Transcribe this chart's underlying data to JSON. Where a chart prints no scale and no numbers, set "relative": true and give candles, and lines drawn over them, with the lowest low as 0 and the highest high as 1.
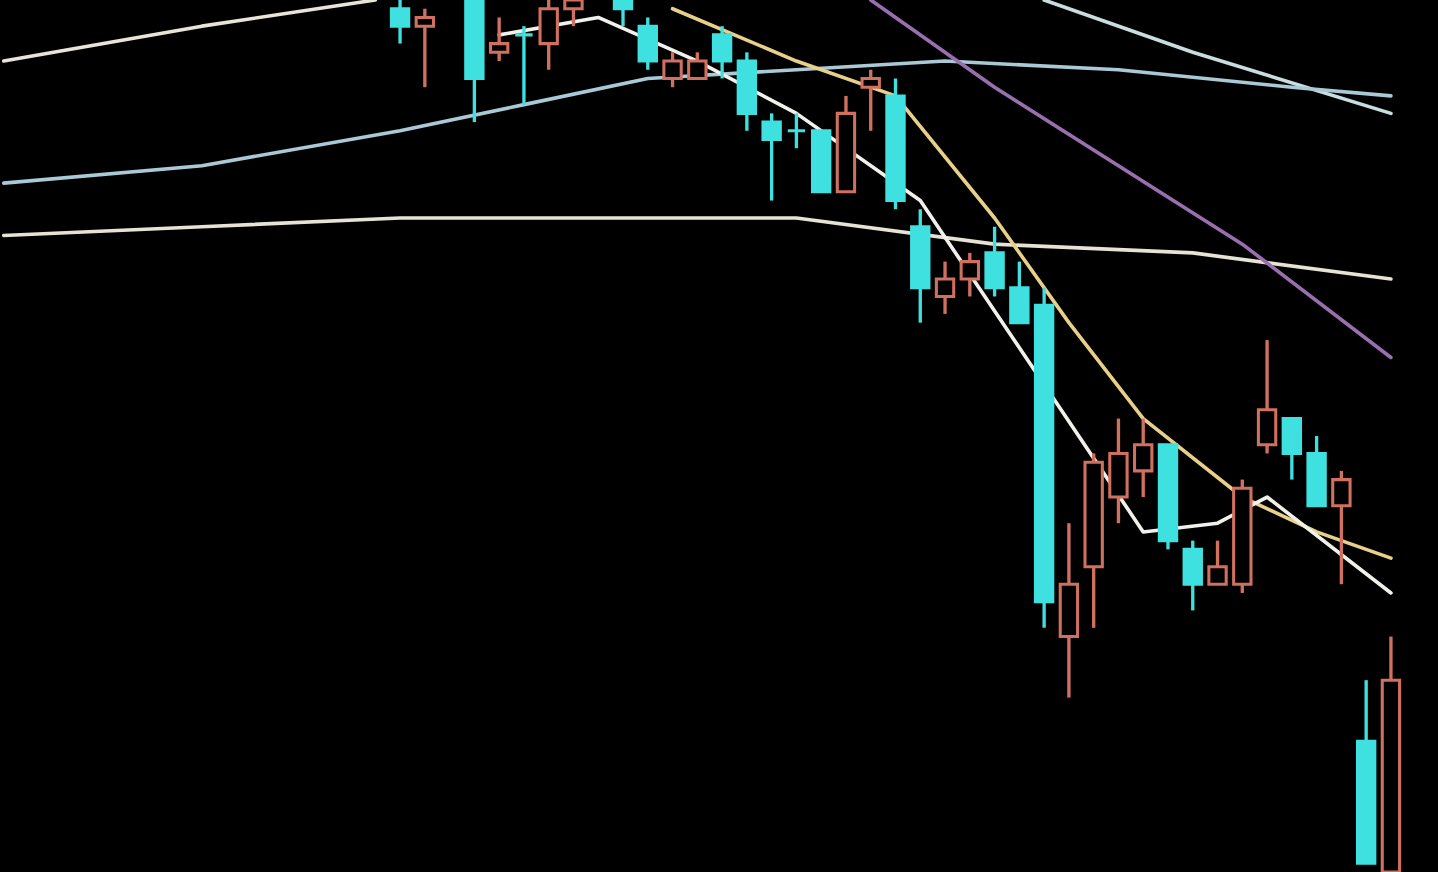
{
  "chart_data": {
    "type": "candlestick",
    "relative": true,
    "categories": [
      null,
      null,
      null,
      null,
      null,
      null,
      null,
      null,
      null,
      null,
      null,
      null,
      null,
      null,
      null,
      null,
      null,
      null,
      null,
      null,
      null,
      null,
      null,
      null,
      null,
      null,
      null,
      null,
      null,
      null,
      null,
      null,
      null,
      null,
      null,
      null,
      null,
      null,
      null,
      null,
      null,
      null,
      null,
      null,
      null,
      null,
      null,
      null,
      null,
      null,
      null,
      null,
      null,
      null,
      null,
      null,
      null
    ],
    "ohlc": [
      null,
      null,
      null,
      null,
      null,
      null,
      null,
      null,
      null,
      null,
      null,
      null,
      null,
      null,
      null,
      null,
      [
        0.99,
        1.0,
        0.95,
        0.97
      ],
      [
        0.97,
        0.99,
        0.9,
        0.98
      ],
      null,
      [
        1.0,
        1.0,
        0.86,
        0.91
      ],
      [
        0.94,
        0.98,
        0.93,
        0.95
      ],
      [
        0.96,
        0.97,
        0.88,
        0.96
      ],
      [
        0.95,
        1.0,
        0.92,
        0.99
      ],
      [
        0.99,
        1.0,
        0.97,
        1.0
      ],
      null,
      [
        1.0,
        1.0,
        0.97,
        0.99
      ],
      [
        0.97,
        0.98,
        0.92,
        0.93
      ],
      [
        0.91,
        0.94,
        0.9,
        0.93
      ],
      [
        0.91,
        0.94,
        0.91,
        0.93
      ],
      [
        0.96,
        0.97,
        0.91,
        0.93
      ],
      [
        0.93,
        0.94,
        0.85,
        0.87
      ],
      [
        0.86,
        0.87,
        0.77,
        0.84
      ],
      [
        0.85,
        0.87,
        0.83,
        0.85
      ],
      [
        0.85,
        0.85,
        0.78,
        0.78
      ],
      [
        0.78,
        0.89,
        0.78,
        0.87
      ],
      [
        0.9,
        0.92,
        0.85,
        0.91
      ],
      [
        0.89,
        0.91,
        0.76,
        0.77
      ],
      [
        0.74,
        0.76,
        0.63,
        0.67
      ],
      [
        0.66,
        0.7,
        0.64,
        0.68
      ],
      [
        0.68,
        0.71,
        0.66,
        0.7
      ],
      [
        0.71,
        0.74,
        0.66,
        0.67
      ],
      [
        0.67,
        0.7,
        0.63,
        0.63
      ],
      [
        0.65,
        0.67,
        0.28,
        0.31
      ],
      [
        0.27,
        0.4,
        0.2,
        0.33
      ],
      [
        0.35,
        0.48,
        0.28,
        0.47
      ],
      [
        0.43,
        0.52,
        0.4,
        0.48
      ],
      [
        0.46,
        0.52,
        0.43,
        0.49
      ],
      [
        0.49,
        0.49,
        0.37,
        0.38
      ],
      [
        0.37,
        0.38,
        0.3,
        0.33
      ],
      [
        0.33,
        0.38,
        0.33,
        0.35
      ],
      [
        0.33,
        0.45,
        0.32,
        0.44
      ],
      [
        0.49,
        0.61,
        0.48,
        0.53
      ],
      [
        0.52,
        0.52,
        0.45,
        0.48
      ],
      [
        0.48,
        0.5,
        0.42,
        0.42
      ],
      [
        0.42,
        0.46,
        0.33,
        0.45
      ],
      [
        0.15,
        0.22,
        0.01,
        0.01
      ],
      [
        0.0,
        0.27,
        0.0,
        0.22
      ]
    ],
    "colors": [
      null,
      null,
      null,
      null,
      null,
      null,
      null,
      null,
      null,
      null,
      null,
      null,
      null,
      null,
      null,
      null,
      "#3fe0e0",
      "#d0705e",
      null,
      "#3fe0e0",
      "#d0705e",
      "#3fe0e0",
      "#d0705e",
      "#d0705e",
      null,
      "#3fe0e0",
      "#3fe0e0",
      "#d0705e",
      "#d0705e",
      "#3fe0e0",
      "#3fe0e0",
      "#3fe0e0",
      "#3fe0e0",
      "#3fe0e0",
      "#d0705e",
      "#d0705e",
      "#3fe0e0",
      "#3fe0e0",
      "#d0705e",
      "#d0705e",
      "#3fe0e0",
      "#3fe0e0",
      "#3fe0e0",
      "#d0705e",
      "#d0705e",
      "#d0705e",
      "#d0705e",
      "#3fe0e0",
      "#3fe0e0",
      "#d0705e",
      "#d0705e",
      "#d0705e",
      "#3fe0e0",
      "#3fe0e0",
      "#d0705e",
      "#3fe0e0",
      "#d0705e"
    ],
    "series": [
      {
        "type": "line",
        "color": "#e8e4d8",
        "values": [
          0.93,
          null,
          null,
          null,
          null,
          null,
          null,
          null,
          0.97,
          null,
          null,
          null,
          null,
          null,
          null,
          1.0,
          null,
          null,
          null,
          null,
          null,
          null,
          null,
          null,
          null,
          null,
          null,
          null,
          null,
          null,
          null,
          null,
          null,
          null,
          null,
          null,
          null,
          null,
          null,
          null,
          null,
          null,
          null,
          null,
          null,
          null,
          null,
          null,
          null,
          null,
          null,
          null,
          null,
          null,
          null,
          null,
          null
        ]
      },
      {
        "type": "line",
        "color": "#c8dde0",
        "values": [
          null,
          null,
          null,
          null,
          null,
          null,
          null,
          null,
          null,
          null,
          null,
          null,
          null,
          null,
          null,
          null,
          null,
          null,
          null,
          null,
          null,
          null,
          null,
          null,
          null,
          null,
          null,
          null,
          null,
          null,
          null,
          null,
          null,
          null,
          null,
          null,
          null,
          null,
          null,
          null,
          null,
          null,
          1.0,
          null,
          null,
          null,
          null,
          null,
          0.94,
          null,
          null,
          null,
          null,
          null,
          null,
          null,
          0.87
        ]
      },
      {
        "type": "line",
        "color": "#a9c9d6",
        "values": [
          0.79,
          null,
          null,
          null,
          null,
          null,
          null,
          null,
          0.81,
          null,
          null,
          null,
          null,
          null,
          null,
          null,
          0.85,
          null,
          null,
          null,
          null,
          0.88,
          null,
          null,
          null,
          null,
          0.91,
          null,
          null,
          null,
          null,
          null,
          0.92,
          null,
          null,
          null,
          null,
          null,
          0.93,
          null,
          null,
          null,
          null,
          null,
          null,
          0.92,
          null,
          null,
          null,
          null,
          null,
          null,
          0.9,
          null,
          null,
          null,
          0.89
        ]
      },
      {
        "type": "line",
        "color": "#e6e2d4",
        "values": [
          0.73,
          null,
          null,
          null,
          null,
          null,
          null,
          null,
          0.74,
          null,
          null,
          null,
          null,
          null,
          null,
          null,
          0.75,
          null,
          null,
          null,
          null,
          null,
          null,
          null,
          0.75,
          null,
          null,
          null,
          null,
          null,
          null,
          null,
          0.75,
          null,
          null,
          null,
          null,
          null,
          null,
          null,
          0.72,
          null,
          null,
          null,
          null,
          null,
          null,
          null,
          0.71,
          null,
          null,
          null,
          null,
          null,
          null,
          null,
          0.68
        ]
      },
      {
        "type": "line",
        "color": "#9a6fb0",
        "values": [
          null,
          null,
          null,
          null,
          null,
          null,
          null,
          null,
          null,
          null,
          null,
          null,
          null,
          null,
          null,
          null,
          null,
          null,
          null,
          null,
          null,
          null,
          null,
          null,
          null,
          null,
          null,
          null,
          null,
          null,
          null,
          null,
          null,
          null,
          null,
          1.0,
          null,
          null,
          null,
          null,
          0.9,
          null,
          null,
          null,
          null,
          0.81,
          null,
          null,
          null,
          null,
          0.72,
          null,
          null,
          null,
          null,
          null,
          0.59
        ]
      },
      {
        "type": "line",
        "color": "#e8cf8a",
        "values": [
          null,
          null,
          null,
          null,
          null,
          null,
          null,
          null,
          null,
          null,
          null,
          null,
          null,
          null,
          null,
          null,
          null,
          null,
          null,
          null,
          null,
          null,
          null,
          null,
          null,
          null,
          null,
          0.99,
          null,
          null,
          null,
          null,
          0.93,
          null,
          null,
          null,
          0.89,
          null,
          null,
          null,
          0.75,
          null,
          null,
          0.63,
          null,
          null,
          0.52,
          null,
          null,
          null,
          0.43,
          null,
          null,
          0.39,
          null,
          null,
          0.36
        ]
      },
      {
        "type": "line",
        "color": "#f2f0ea",
        "values": [
          null,
          null,
          null,
          null,
          null,
          null,
          null,
          null,
          null,
          null,
          null,
          null,
          null,
          null,
          null,
          null,
          null,
          null,
          null,
          null,
          0.96,
          null,
          null,
          null,
          0.98,
          null,
          null,
          null,
          0.93,
          null,
          null,
          null,
          0.87,
          null,
          null,
          null,
          null,
          0.77,
          null,
          null,
          null,
          null,
          null,
          null,
          null,
          null,
          0.39,
          null,
          null,
          0.4,
          null,
          0.43,
          null,
          null,
          null,
          null,
          0.32
        ]
      }
    ]
  }
}
